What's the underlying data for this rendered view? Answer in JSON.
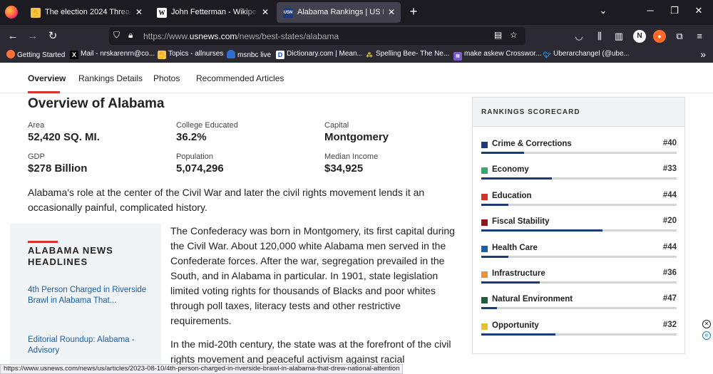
{
  "browser": {
    "tabs": [
      {
        "title": "The election 2024 Thread - Page",
        "active": false
      },
      {
        "title": "John Fetterman - Wikipedia",
        "active": false
      },
      {
        "title": "Alabama Rankings | US News Best States",
        "active": true
      }
    ],
    "url_prefix": "https://www.",
    "url_host": "usnews.com",
    "url_path": "/news/best-states/alabama",
    "bookmarks": [
      {
        "label": "Getting Started",
        "icon": "firefox-icon"
      },
      {
        "label": "Mail - nrskarenrn@co...",
        "icon": "x-icon"
      },
      {
        "label": "Topics - allnurses",
        "icon": "allnurses-icon"
      },
      {
        "label": "msnbc live",
        "icon": "msnbc-icon"
      },
      {
        "label": "Dictionary.com | Mean...",
        "icon": "dictionary-icon"
      },
      {
        "label": "Spelling Bee- The Ne...",
        "icon": "bee-icon"
      },
      {
        "label": "make askew Crosswor...",
        "icon": "crossword-icon"
      },
      {
        "label": "Uberarchangel (@ube...",
        "icon": "twitter-icon"
      }
    ],
    "status_url": "https://www.usnews.com/news/us/articles/2023-08-10/4th-person-charged-in-riverside-brawl-in-alabama-that-drew-national-attention"
  },
  "subnav": {
    "items": [
      "Overview",
      "Rankings Details",
      "Photos",
      "Recommended Articles"
    ]
  },
  "overview": {
    "title": "Overview of Alabama",
    "facts": [
      {
        "label": "Area",
        "value": "52,420 SQ. MI."
      },
      {
        "label": "College Educated",
        "value": "36.2%"
      },
      {
        "label": "Capital",
        "value": "Montgomery"
      },
      {
        "label": "GDP",
        "value": "$278 Billion"
      },
      {
        "label": "Population",
        "value": "5,074,296"
      },
      {
        "label": "Median Income",
        "value": "$34,925"
      }
    ],
    "lead": "Alabama's role at the center of the Civil War and later the civil rights movement lends it an occasionally painful, complicated history.",
    "paragraph1": "The Confederacy was born in Montgomery, its first capital during the Civil War. About 120,000 white Alabama men served in the Confederate forces. After the war, segregation prevailed in the South, and in Alabama in particular. In 1901, state legislation limited voting rights for thousands of Blacks and poor whites through poll taxes, literacy tests and other restrictive requirements.",
    "paragraph2": "In the mid-20th century, the state was at the forefront of the civil rights movement and peaceful activism against racial"
  },
  "news": {
    "title": "ALABAMA NEWS HEADLINES",
    "links": [
      "4th Person Charged in Riverside Brawl in Alabama That...",
      "Editorial Roundup: Alabama - Advisory"
    ]
  },
  "scorecard": {
    "title": "RANKINGS SCORECARD",
    "items": [
      {
        "name": "Crime & Corrections",
        "rank": "#40",
        "color": "#1b3b7a",
        "fill": 0.22
      },
      {
        "name": "Economy",
        "rank": "#33",
        "color": "#2eab6e",
        "fill": 0.36
      },
      {
        "name": "Education",
        "rank": "#44",
        "color": "#d9312b",
        "fill": 0.14
      },
      {
        "name": "Fiscal Stability",
        "rank": "#20",
        "color": "#8b1a1a",
        "fill": 0.62
      },
      {
        "name": "Health Care",
        "rank": "#44",
        "color": "#1b5fa8",
        "fill": 0.14
      },
      {
        "name": "Infrastructure",
        "rank": "#36",
        "color": "#e8952b",
        "fill": 0.3
      },
      {
        "name": "Natural Environment",
        "rank": "#47",
        "color": "#1f5e3a",
        "fill": 0.08
      },
      {
        "name": "Opportunity",
        "rank": "#32",
        "color": "#e8c12b",
        "fill": 0.38
      }
    ]
  }
}
